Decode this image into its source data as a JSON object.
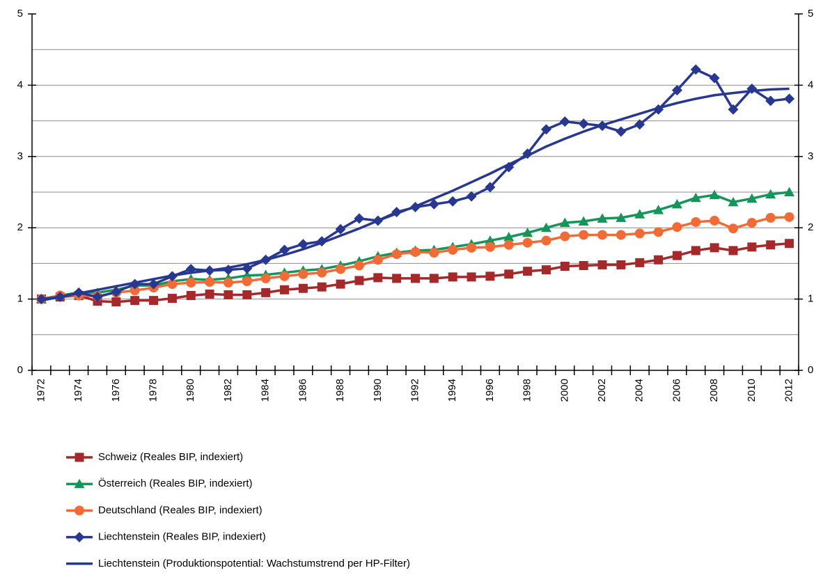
{
  "chart_data": {
    "type": "line",
    "categories": [
      "1972",
      null,
      "1974",
      null,
      "1976",
      null,
      "1978",
      null,
      "1980",
      null,
      "1982",
      null,
      "1984",
      null,
      "1986",
      null,
      "1988",
      null,
      "1990",
      null,
      "1992",
      null,
      "1994",
      null,
      "1996",
      null,
      "1998",
      null,
      "2000",
      null,
      "2002",
      null,
      "2004",
      null,
      "2006",
      null,
      "2008",
      null,
      "2010",
      null,
      "2012"
    ],
    "ylim": [
      0,
      5
    ],
    "yticks": [
      0,
      1,
      2,
      3,
      4,
      5
    ],
    "y2lim": [
      0,
      5
    ],
    "y2ticks": [
      0,
      1,
      2,
      3,
      4,
      5
    ],
    "grid_lines": [
      0.5,
      1,
      1.5,
      2,
      2.5,
      3,
      3.5,
      4,
      4.5
    ],
    "legend": "bottom",
    "series": [
      {
        "name": "Schweiz (Reales BIP, indexiert)",
        "color": "#a5292a",
        "marker": "square",
        "values": [
          1.0,
          1.03,
          1.05,
          0.97,
          0.96,
          0.98,
          0.98,
          1.01,
          1.05,
          1.07,
          1.06,
          1.06,
          1.09,
          1.13,
          1.15,
          1.17,
          1.21,
          1.26,
          1.3,
          1.29,
          1.29,
          1.29,
          1.31,
          1.31,
          1.32,
          1.35,
          1.39,
          1.41,
          1.46,
          1.47,
          1.48,
          1.48,
          1.51,
          1.55,
          1.61,
          1.68,
          1.72,
          1.68,
          1.73,
          1.76,
          1.78
        ]
      },
      {
        "name": "Österreich (Reales BIP, indexiert)",
        "color": "#16955a",
        "marker": "triangle",
        "values": [
          1.0,
          1.05,
          1.09,
          1.09,
          1.13,
          1.19,
          1.19,
          1.25,
          1.28,
          1.27,
          1.29,
          1.33,
          1.34,
          1.37,
          1.4,
          1.42,
          1.47,
          1.53,
          1.6,
          1.65,
          1.68,
          1.69,
          1.73,
          1.77,
          1.82,
          1.87,
          1.93,
          2.0,
          2.07,
          2.09,
          2.13,
          2.14,
          2.19,
          2.25,
          2.33,
          2.42,
          2.46,
          2.36,
          2.41,
          2.47,
          2.5
        ]
      },
      {
        "name": "Deutschland (Reales BIP, indexiert)",
        "color": "#f26b36",
        "marker": "circle",
        "values": [
          1.0,
          1.05,
          1.05,
          1.04,
          1.09,
          1.12,
          1.16,
          1.21,
          1.23,
          1.24,
          1.23,
          1.25,
          1.29,
          1.32,
          1.35,
          1.37,
          1.42,
          1.47,
          1.55,
          1.63,
          1.66,
          1.65,
          1.69,
          1.72,
          1.73,
          1.76,
          1.79,
          1.82,
          1.88,
          1.9,
          1.9,
          1.9,
          1.92,
          1.94,
          2.01,
          2.08,
          2.1,
          1.99,
          2.07,
          2.14,
          2.15
        ]
      },
      {
        "name": "Liechtenstein (Reales BIP, indexiert)",
        "color": "#283891",
        "marker": "diamond",
        "values": [
          1.0,
          1.03,
          1.09,
          1.03,
          1.1,
          1.21,
          1.21,
          1.32,
          1.42,
          1.4,
          1.41,
          1.43,
          1.55,
          1.69,
          1.77,
          1.81,
          1.98,
          2.13,
          2.1,
          2.22,
          2.29,
          2.33,
          2.37,
          2.44,
          2.57,
          2.85,
          3.04,
          3.38,
          3.49,
          3.46,
          3.43,
          3.35,
          3.45,
          3.66,
          3.93,
          4.22,
          4.1,
          3.66,
          3.95,
          3.78,
          3.81
        ]
      },
      {
        "name": "Liechtenstein (Produktionspotential: Wachstumstrend per HP-Filter)",
        "color": "#283891",
        "marker": "none",
        "values": [
          0.98,
          1.03,
          1.08,
          1.13,
          1.18,
          1.23,
          1.28,
          1.33,
          1.37,
          1.4,
          1.44,
          1.49,
          1.55,
          1.62,
          1.7,
          1.79,
          1.89,
          1.99,
          2.1,
          2.2,
          2.3,
          2.41,
          2.52,
          2.64,
          2.76,
          2.89,
          3.01,
          3.14,
          3.25,
          3.35,
          3.44,
          3.52,
          3.6,
          3.68,
          3.75,
          3.81,
          3.86,
          3.89,
          3.92,
          3.94,
          3.95
        ]
      }
    ]
  }
}
